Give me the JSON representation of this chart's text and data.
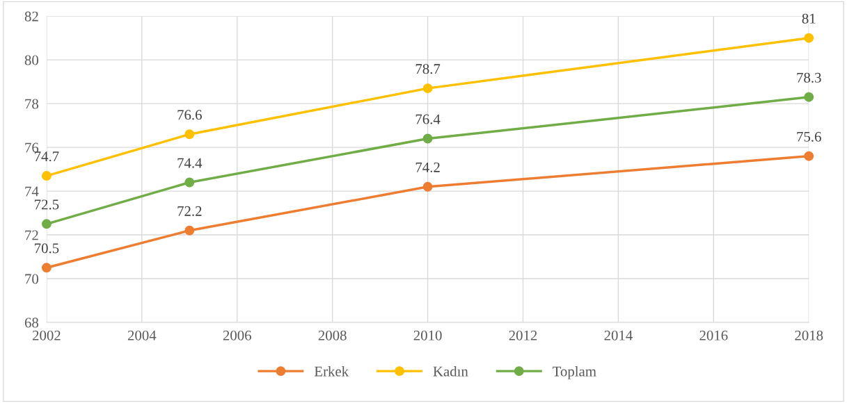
{
  "chart_data": {
    "type": "line",
    "x": [
      2002,
      2005,
      2010,
      2018
    ],
    "series": [
      {
        "name": "Erkek",
        "color": "#ed7d31",
        "values": [
          70.5,
          72.2,
          74.2,
          75.6
        ]
      },
      {
        "name": "Kadın",
        "color": "#ffc000",
        "values": [
          74.7,
          76.6,
          78.7,
          81
        ]
      },
      {
        "name": "Toplam",
        "color": "#70ad47",
        "values": [
          72.5,
          74.4,
          76.4,
          78.3
        ]
      }
    ],
    "xlim": [
      2002,
      2018
    ],
    "xticks": [
      2002,
      2004,
      2006,
      2008,
      2010,
      2012,
      2014,
      2016,
      2018
    ],
    "ylim": [
      68,
      82
    ],
    "yticks": [
      68,
      70,
      72,
      74,
      76,
      78,
      80,
      82
    ],
    "grid": true,
    "legend": "bottom",
    "marker": "circle",
    "line_style": "solid",
    "data_labels": true
  }
}
